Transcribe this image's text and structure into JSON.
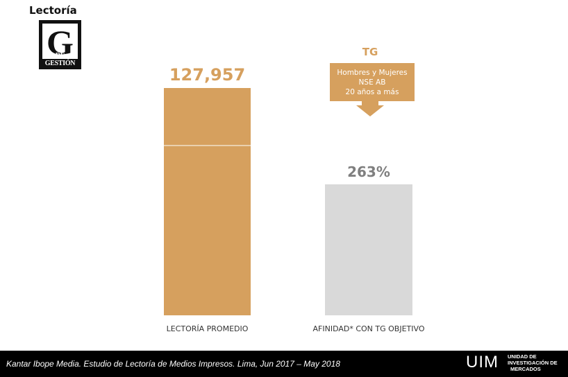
{
  "header": {
    "title": "Lectoría"
  },
  "logo": {
    "letter": "G",
    "subtitle": "DE GESTIÓN"
  },
  "callout": {
    "title": "TG",
    "lines": [
      "Hombres y Mujeres",
      "NSE AB",
      "20 años a más"
    ]
  },
  "chart_data": {
    "type": "bar",
    "categories": [
      "LECTORÍA PROMEDIO",
      "AFINIDAD* CON TG OBJETIVO"
    ],
    "values": [
      127957,
      263
    ],
    "value_labels": [
      "127,957",
      "263%"
    ],
    "colors": [
      "#d6a05e",
      "#d9d9d9"
    ],
    "value_label_colors": [
      "#d6a05e",
      "#7f7f7f"
    ],
    "title": "",
    "xlabel": "",
    "ylabel": "",
    "grid": false
  },
  "footer": {
    "source": "Kantar Ibope Media. Estudio de Lectoría de Medios Impresos. Lima, Jun 2017 – May 2018",
    "brand": "UIM",
    "brand_lines": [
      "UNIDAD DE",
      "INVESTIGACIÓN DE",
      "MERCADOS"
    ]
  }
}
